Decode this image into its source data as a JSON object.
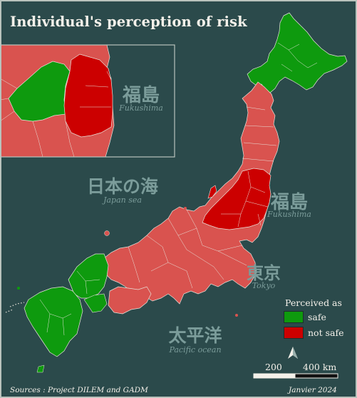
{
  "title": "Individual's perception of risk",
  "labels": {
    "japan_sea_jp": "日本の海",
    "japan_sea_en": "Japan sea",
    "fukushima_jp": "福島",
    "fukushima_en": "Fukushima",
    "tokyo_jp": "東京",
    "tokyo_en": "Tokyo",
    "pacific_jp": "太平洋",
    "pacific_en": "Pacific ocean"
  },
  "legend": {
    "title": "Perceived as",
    "items": [
      {
        "label": "safe",
        "color": "#0e9a0e"
      },
      {
        "label": "not safe",
        "color": "#cc0000"
      }
    ]
  },
  "colors": {
    "background": "#2b4a4b",
    "neutral_region": "#d9534f",
    "safe": "#0e9a0e",
    "not_safe": "#cc0000"
  },
  "scale_bar": {
    "mid_label": "200",
    "end_label": "400 km"
  },
  "north_arrow": "north-arrow-icon",
  "sources": "Sources : Project DILEM and GADM",
  "date": "Janvier 2024"
}
